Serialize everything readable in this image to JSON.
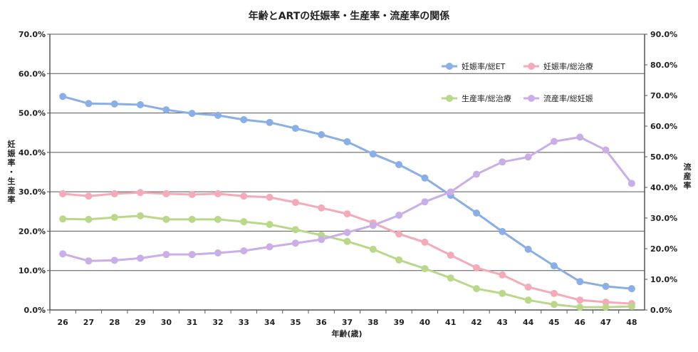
{
  "chart_data": {
    "type": "line",
    "title": "年齢とARTの妊娠率・生産率・流産率の関係",
    "xlabel": "年齢(歳)",
    "ylabel": "妊娠率・生産率",
    "y2label": "流産率",
    "ylim": [
      0,
      70
    ],
    "y2lim": [
      0,
      90
    ],
    "yticks": [
      "0.0%",
      "10.0%",
      "20.0%",
      "30.0%",
      "40.0%",
      "50.0%",
      "60.0%",
      "70.0%"
    ],
    "y2ticks": [
      "0.0%",
      "10.0%",
      "20.0%",
      "30.0%",
      "40.0%",
      "50.0%",
      "60.0%",
      "70.0%",
      "80.0%",
      "90.0%"
    ],
    "grid": true,
    "legend_placement": "top-right",
    "categories": [
      "26",
      "27",
      "28",
      "29",
      "30",
      "31",
      "32",
      "33",
      "34",
      "35",
      "36",
      "37",
      "38",
      "39",
      "40",
      "41",
      "42",
      "43",
      "44",
      "45",
      "46",
      "47",
      "48"
    ],
    "series": [
      {
        "name": "妊娠率/総ET",
        "axis": "left",
        "color": "#8aaee6",
        "values": [
          54.2,
          52.4,
          52.3,
          52.1,
          50.8,
          49.9,
          49.4,
          48.3,
          47.6,
          46.1,
          44.5,
          42.7,
          39.6,
          36.9,
          33.5,
          29.1,
          24.6,
          19.9,
          15.4,
          11.2,
          7.2,
          6.0,
          5.4
        ]
      },
      {
        "name": "妊娠率/総治療",
        "axis": "left",
        "color": "#f4aab8",
        "values": [
          29.5,
          28.9,
          29.5,
          29.8,
          29.5,
          29.3,
          29.5,
          28.9,
          28.6,
          27.3,
          25.9,
          24.4,
          22.1,
          19.3,
          17.2,
          13.9,
          10.7,
          8.9,
          5.8,
          4.2,
          2.5,
          2.0,
          1.6
        ]
      },
      {
        "name": "生産率/総治療",
        "axis": "left",
        "color": "#b9d88a",
        "values": [
          23.1,
          23.0,
          23.5,
          23.9,
          23.0,
          23.0,
          23.0,
          22.4,
          21.7,
          20.4,
          19.0,
          17.4,
          15.4,
          12.7,
          10.5,
          8.1,
          5.4,
          4.2,
          2.5,
          1.4,
          0.7,
          0.7,
          0.9
        ]
      },
      {
        "name": "流産率/総妊娠",
        "axis": "right",
        "color": "#c9aee8",
        "values": [
          18.3,
          16.0,
          16.2,
          16.9,
          18.1,
          18.1,
          18.6,
          19.3,
          20.6,
          21.8,
          23.0,
          25.3,
          27.6,
          30.9,
          35.3,
          38.5,
          44.3,
          48.3,
          49.9,
          55.0,
          56.4,
          52.2,
          41.3
        ]
      }
    ]
  }
}
